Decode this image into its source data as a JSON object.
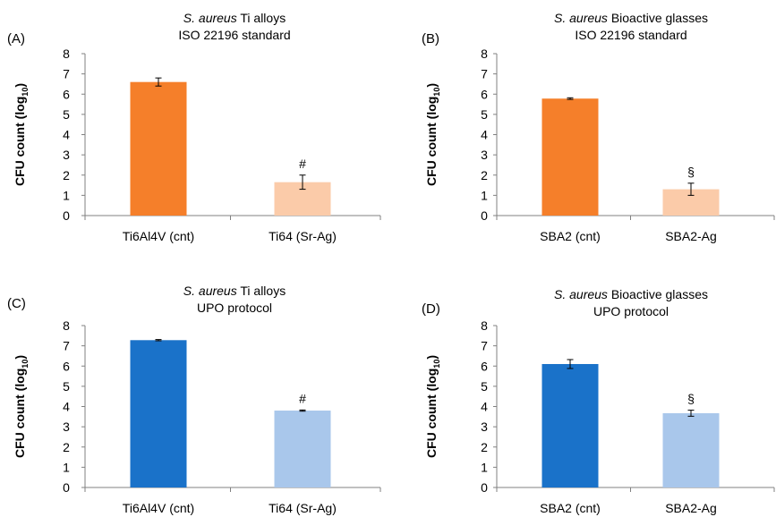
{
  "chart_data": [
    {
      "type": "bar",
      "panel_label": "(A)",
      "title_italic": "S. aureus",
      "title_rest": " Ti alloys",
      "subtitle": "ISO 22196 standard",
      "ylabel": "CFU count (log",
      "ylabel_sub": "10",
      "ylabel_close": ")",
      "ylim": [
        0,
        8
      ],
      "yticks": [
        "0",
        "1",
        "2",
        "3",
        "4",
        "5",
        "6",
        "7",
        "8"
      ],
      "categories": [
        "Ti6Al4V (cnt)",
        "Ti64 (Sr-Ag)"
      ],
      "values": [
        6.6,
        1.65
      ],
      "errors": [
        0.2,
        0.35
      ],
      "colors": [
        "#f57f2a",
        "#fbcba9"
      ],
      "annotations": [
        "",
        "#"
      ]
    },
    {
      "type": "bar",
      "panel_label": "(B)",
      "title_italic": "S. aureus",
      "title_rest": " Bioactive glasses",
      "subtitle": "ISO 22196 standard",
      "ylabel": "CFU count (log",
      "ylabel_sub": "10",
      "ylabel_close": ")",
      "ylim": [
        0,
        8
      ],
      "yticks": [
        "0",
        "1",
        "2",
        "3",
        "4",
        "5",
        "6",
        "7",
        "8"
      ],
      "categories": [
        "SBA2 (cnt)",
        "SBA2-Ag"
      ],
      "values": [
        5.78,
        1.3
      ],
      "errors": [
        0.04,
        0.3
      ],
      "colors": [
        "#f57f2a",
        "#fbcba9"
      ],
      "annotations": [
        "",
        "§"
      ]
    },
    {
      "type": "bar",
      "panel_label": "(C)",
      "title_italic": "S. aureus",
      "title_rest": " Ti alloys",
      "subtitle": "UPO protocol",
      "ylabel": "CFU count (log",
      "ylabel_sub": "10",
      "ylabel_close": ")",
      "ylim": [
        0,
        8
      ],
      "yticks": [
        "0",
        "1",
        "2",
        "3",
        "4",
        "5",
        "6",
        "7",
        "8"
      ],
      "categories": [
        "Ti6Al4V (cnt)",
        "Ti64 (Sr-Ag)"
      ],
      "values": [
        7.28,
        3.8
      ],
      "errors": [
        0.03,
        0.03
      ],
      "colors": [
        "#1a72c9",
        "#a9c7eb"
      ],
      "annotations": [
        "",
        "#"
      ]
    },
    {
      "type": "bar",
      "panel_label": "(D)",
      "title_italic": "S. aureus",
      "title_rest": " Bioactive glasses",
      "subtitle": "UPO protocol",
      "ylabel": "CFU count (log",
      "ylabel_sub": "10",
      "ylabel_close": ")",
      "ylim": [
        0,
        8
      ],
      "yticks": [
        "0",
        "1",
        "2",
        "3",
        "4",
        "5",
        "6",
        "7",
        "8"
      ],
      "categories": [
        "SBA2 (cnt)",
        "SBA2-Ag"
      ],
      "values": [
        6.1,
        3.67
      ],
      "errors": [
        0.22,
        0.15
      ],
      "colors": [
        "#1a72c9",
        "#a9c7eb"
      ],
      "annotations": [
        "",
        "§"
      ]
    }
  ]
}
